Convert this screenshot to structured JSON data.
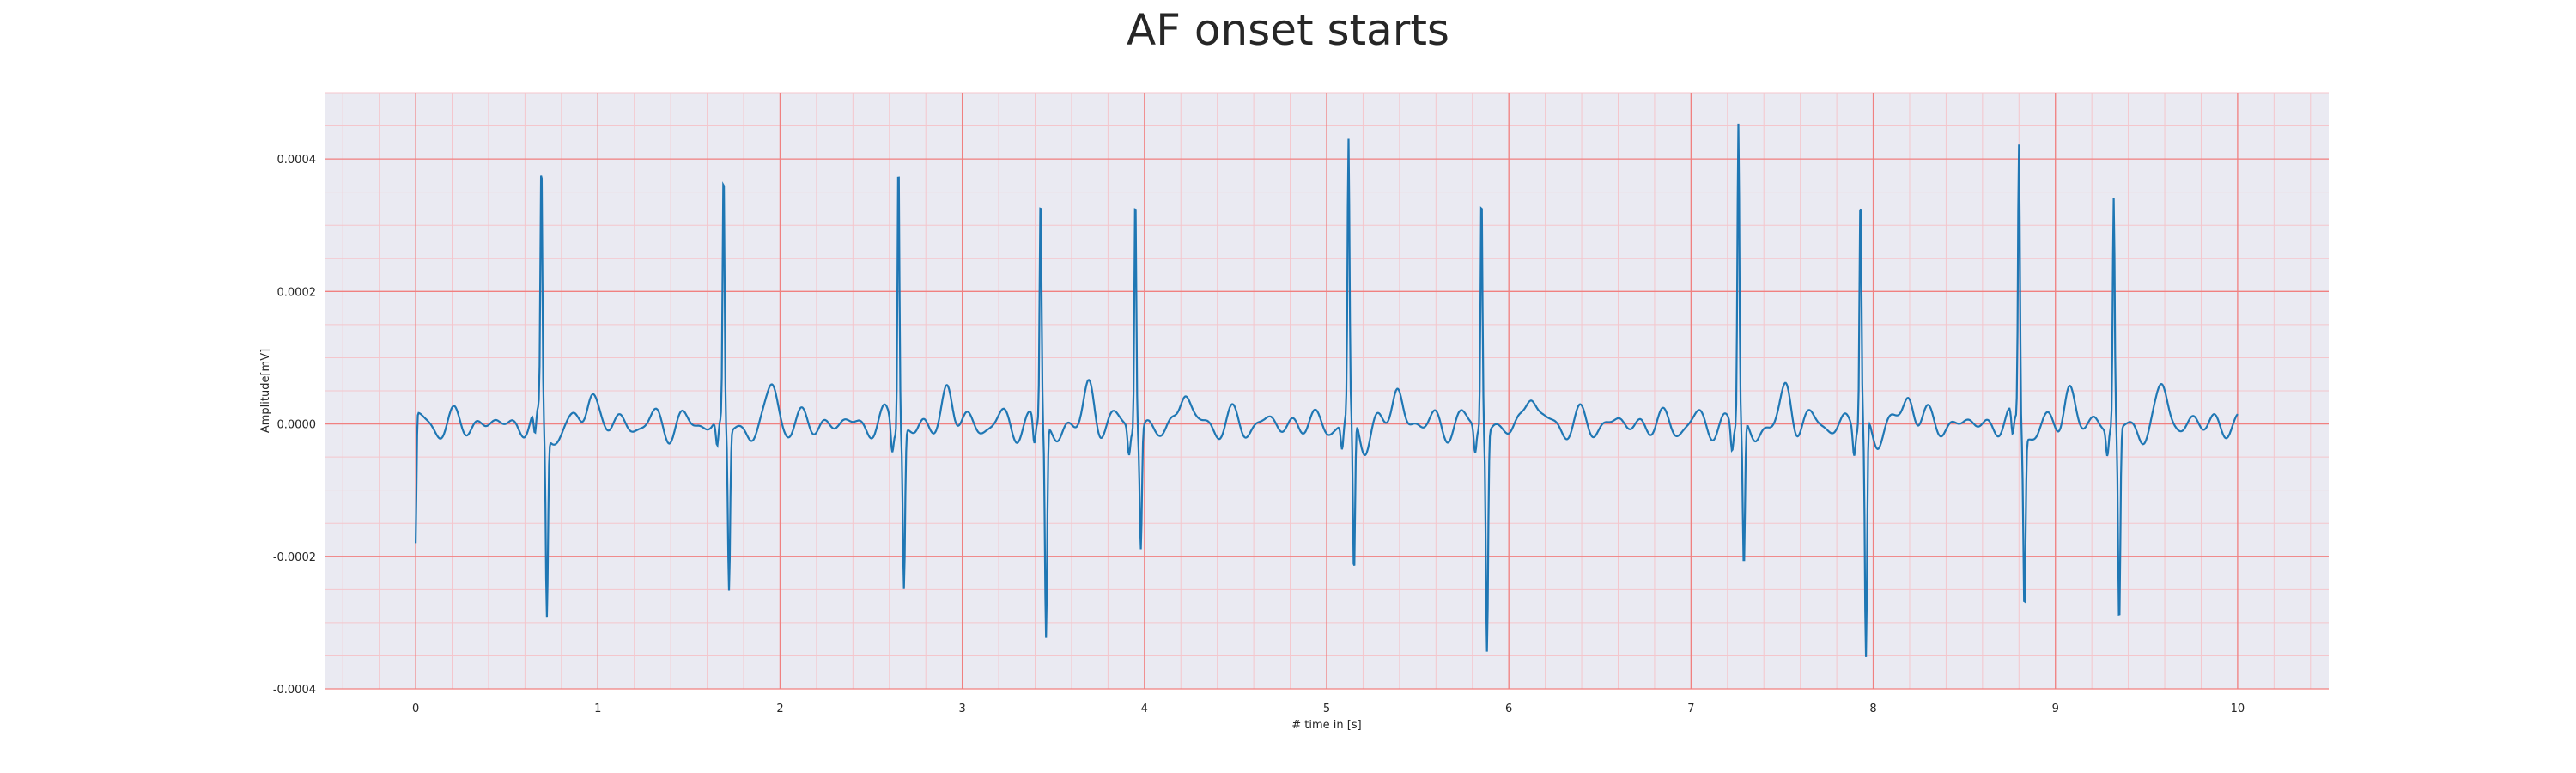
{
  "chart_data": {
    "type": "line",
    "title": "AF onset starts",
    "xlabel": "# time in [s]",
    "ylabel": "Amplitude[mV]",
    "xlim": [
      -0.5,
      10.5
    ],
    "ylim": [
      -0.0004,
      0.0005
    ],
    "x_ticks": [
      0,
      1,
      2,
      3,
      4,
      5,
      6,
      7,
      8,
      9,
      10
    ],
    "x_tick_labels": [
      "0",
      "1",
      "2",
      "3",
      "4",
      "5",
      "6",
      "7",
      "8",
      "9",
      "10"
    ],
    "y_ticks": [
      -0.0004,
      -0.0002,
      0.0,
      0.0002,
      0.0004
    ],
    "y_tick_labels": [
      "-0.0004",
      "-0.0002",
      "0.0000",
      "0.0002",
      "0.0004"
    ],
    "grid": true,
    "minor_grid": true,
    "sampling_rate_hz": 250,
    "series": [
      {
        "color": "#1f77b4",
        "beats": [
          {
            "t": 0.69,
            "r": 0.000385,
            "s": -0.000275
          },
          {
            "t": 1.69,
            "r": 0.000385,
            "s": -0.000242
          },
          {
            "t": 2.65,
            "r": 0.000422,
            "s": -0.000237
          },
          {
            "t": 3.43,
            "r": 0.000352,
            "s": -0.00032
          },
          {
            "t": 3.95,
            "r": 0.000368,
            "s": -0.000178
          },
          {
            "t": 5.12,
            "r": 0.000412,
            "s": -0.000242
          },
          {
            "t": 5.85,
            "r": 0.000365,
            "s": -0.000328
          },
          {
            "t": 7.26,
            "r": 0.000457,
            "s": -0.000222
          },
          {
            "t": 7.93,
            "r": 0.00035,
            "s": -0.000362
          },
          {
            "t": 8.8,
            "r": 0.000427,
            "s": -0.00026
          },
          {
            "t": 9.32,
            "r": 0.000347,
            "s": -0.000298
          }
        ],
        "start_value": -0.000195
      }
    ]
  },
  "colors": {
    "axes_face": "#eaeaf2",
    "major_grid": "#f08080",
    "minor_grid": "#f4c6cc",
    "line": "#1f77b4"
  }
}
